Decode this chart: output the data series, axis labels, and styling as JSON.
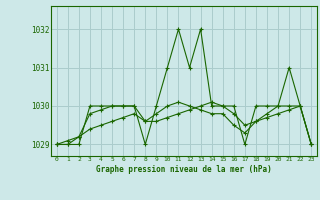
{
  "title": "Graphe pression niveau de la mer (hPa)",
  "background_color": "#cde8e8",
  "grid_color": "#aacccc",
  "line_color": "#1a6600",
  "xlim": [
    -0.5,
    23.5
  ],
  "ylim": [
    1028.7,
    1032.6
  ],
  "yticks": [
    1029,
    1030,
    1031,
    1032
  ],
  "xticks": [
    0,
    1,
    2,
    3,
    4,
    5,
    6,
    7,
    8,
    9,
    10,
    11,
    12,
    13,
    14,
    15,
    16,
    17,
    18,
    19,
    20,
    21,
    22,
    23
  ],
  "series": [
    [
      1029.0,
      1029.0,
      1029.0,
      1030.0,
      1030.0,
      1030.0,
      1030.0,
      1030.0,
      1029.0,
      1030.0,
      1031.0,
      1032.0,
      1031.0,
      1032.0,
      1030.0,
      1030.0,
      1030.0,
      1029.0,
      1030.0,
      1030.0,
      1030.0,
      1031.0,
      1030.0,
      1029.0
    ],
    [
      1029.0,
      1029.0,
      1029.2,
      1029.4,
      1029.5,
      1029.6,
      1029.7,
      1029.8,
      1029.6,
      1029.6,
      1029.7,
      1029.8,
      1029.9,
      1030.0,
      1030.1,
      1030.0,
      1029.8,
      1029.5,
      1029.6,
      1029.7,
      1029.8,
      1029.9,
      1030.0,
      1029.0
    ],
    [
      1029.0,
      1029.1,
      1029.2,
      1029.8,
      1029.9,
      1030.0,
      1030.0,
      1030.0,
      1029.6,
      1029.8,
      1030.0,
      1030.1,
      1030.0,
      1029.9,
      1029.8,
      1029.8,
      1029.5,
      1029.3,
      1029.6,
      1029.8,
      1030.0,
      1030.0,
      1030.0,
      1029.0
    ]
  ]
}
